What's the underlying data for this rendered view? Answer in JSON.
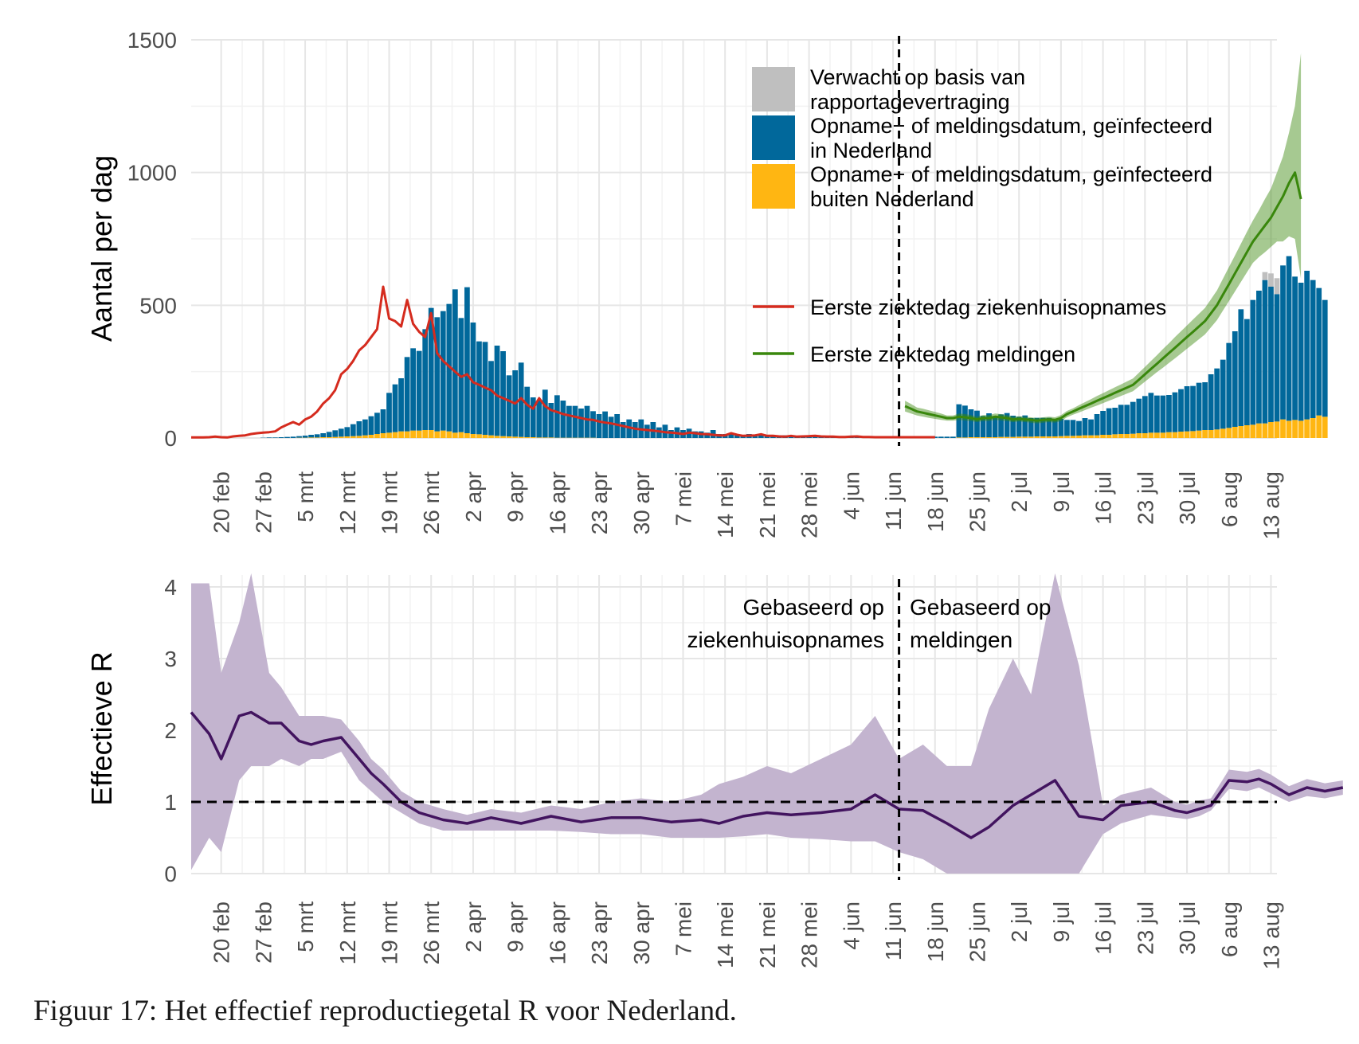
{
  "caption": "Figuur 17: Het effectief reproductiegetal R voor Nederland.",
  "chart_data": [
    {
      "type": "bar",
      "ylabel": "Aantal per dag",
      "ylim": [
        0,
        1500
      ],
      "yticks": [
        "0",
        "500",
        "1000",
        "1500"
      ],
      "x_start": "2020-02-15",
      "x_end": "2020-08-14",
      "xtick_labels": [
        "20 feb",
        "27 feb",
        "5 mrt",
        "12 mrt",
        "19 mrt",
        "26 mrt",
        "2 apr",
        "9 apr",
        "16 apr",
        "23 apr",
        "30 apr",
        "7 mei",
        "14 mei",
        "21 mei",
        "28 mei",
        "4 jun",
        "11 jun",
        "18 jun",
        "25 jun",
        "2 jul",
        "9 jul",
        "16 jul",
        "23 jul",
        "30 jul",
        "6 aug",
        "13 aug"
      ],
      "vline_date": "2020-06-12",
      "grid": true,
      "legend": [
        {
          "label": "Verwacht op basis van rapportagevertraging",
          "line1": "Verwacht op basis van",
          "line2": "rapportagevertraging",
          "color": "#bfbfbf"
        },
        {
          "label": "Opname− of meldingsdatum, geïnfecteerd in Nederland",
          "line1": "Opname− of meldingsdatum, geïnfecteerd",
          "line2": "in Nederland",
          "color": "#01689b"
        },
        {
          "label": "Opname− of meldingsdatum, geïnfecteerd buiten Nederland",
          "line1": "Opname− of meldingsdatum, geïnfecteerd",
          "line2": "buiten Nederland",
          "color": "#ffb612"
        },
        {
          "label": "Eerste ziektedag ziekenhuisopnames",
          "color": "#d52b1e"
        },
        {
          "label": "Eerste ziektedag meldingen",
          "color": "#39870c"
        }
      ],
      "bar_series": [
        {
          "name": "Opname− of meldingsdatum, geïnfecteerd in Nederland",
          "color": "#01689b",
          "start": "2020-02-27",
          "values": [
            1,
            2,
            2,
            3,
            4,
            5,
            6,
            8,
            10,
            12,
            15,
            20,
            25,
            30,
            35,
            45,
            55,
            60,
            70,
            80,
            90,
            150,
            180,
            200,
            280,
            310,
            300,
            380,
            460,
            430,
            450,
            480,
            540,
            430,
            550,
            420,
            350,
            350,
            280,
            340,
            320,
            230,
            250,
            280,
            190,
            150,
            140,
            180,
            130,
            160,
            140,
            120,
            120,
            110,
            120,
            100,
            90,
            100,
            80,
            90,
            60,
            70,
            60,
            70,
            50,
            60,
            40,
            50,
            30,
            40,
            30,
            35,
            25,
            25,
            20,
            30,
            15,
            15,
            15,
            15,
            10,
            15,
            12,
            12,
            10,
            10,
            10,
            10,
            10,
            8,
            8,
            8,
            10,
            8,
            7,
            7,
            6,
            6,
            5,
            6,
            5,
            5,
            5,
            5,
            5,
            5,
            5,
            5,
            5,
            5,
            5,
            5,
            5,
            5,
            5,
            5,
            125,
            120,
            105,
            100,
            80,
            90,
            80,
            85,
            90,
            80,
            75,
            80,
            70,
            70,
            70,
            70,
            65,
            65,
            60,
            60,
            55,
            65,
            60,
            80,
            90,
            100,
            100,
            110,
            110,
            120,
            130,
            140,
            150,
            140,
            140,
            140,
            150,
            160,
            170,
            170,
            180,
            180,
            210,
            230,
            260,
            320,
            360,
            440,
            400,
            470,
            500,
            540,
            510,
            480,
            580,
            620,
            540,
            520,
            560,
            520,
            480,
            440
          ]
        },
        {
          "name": "Opname− of meldingsdatum, geïnfecteerd buiten Nederland",
          "color": "#ffb612",
          "start": "2020-02-27",
          "values": [
            0,
            0,
            0,
            0,
            0,
            0,
            1,
            1,
            2,
            2,
            3,
            3,
            4,
            5,
            6,
            7,
            8,
            10,
            12,
            15,
            18,
            20,
            22,
            25,
            25,
            28,
            28,
            30,
            30,
            25,
            28,
            25,
            20,
            22,
            18,
            15,
            14,
            12,
            10,
            8,
            7,
            6,
            5,
            4,
            3,
            3,
            2,
            2,
            2,
            1,
            1,
            1,
            1,
            1,
            1,
            1,
            0,
            0,
            0,
            0,
            0,
            0,
            0,
            0,
            0,
            0,
            0,
            0,
            0,
            0,
            0,
            0,
            0,
            0,
            0,
            0,
            0,
            0,
            0,
            0,
            0,
            0,
            0,
            0,
            0,
            0,
            0,
            0,
            0,
            0,
            0,
            0,
            0,
            0,
            0,
            0,
            0,
            0,
            0,
            0,
            0,
            0,
            0,
            0,
            0,
            0,
            0,
            0,
            0,
            0,
            0,
            0,
            0,
            0,
            0,
            0,
            2,
            2,
            3,
            3,
            3,
            3,
            3,
            4,
            4,
            4,
            5,
            5,
            5,
            6,
            6,
            6,
            6,
            7,
            8,
            8,
            9,
            10,
            10,
            10,
            12,
            12,
            14,
            15,
            15,
            16,
            18,
            18,
            20,
            20,
            20,
            22,
            22,
            24,
            25,
            26,
            28,
            30,
            30,
            32,
            35,
            38,
            42,
            45,
            48,
            50,
            55,
            55,
            60,
            62,
            70,
            65,
            68,
            65,
            70,
            75,
            85,
            80
          ]
        },
        {
          "name": "Verwacht op basis van rapportagevertraging",
          "color": "#bfbfbf",
          "start": "2020-08-12",
          "values": [
            30,
            50,
            60
          ]
        }
      ],
      "line_series": [
        {
          "name": "Eerste ziektedag ziekenhuisopnames",
          "color": "#d52b1e",
          "start": "2020-02-15",
          "values": [
            2,
            2,
            2,
            3,
            5,
            3,
            2,
            6,
            8,
            10,
            15,
            18,
            20,
            22,
            25,
            40,
            50,
            60,
            50,
            70,
            80,
            100,
            130,
            150,
            180,
            240,
            260,
            290,
            330,
            350,
            380,
            410,
            570,
            450,
            440,
            420,
            520,
            430,
            400,
            380,
            470,
            320,
            290,
            270,
            250,
            230,
            240,
            210,
            200,
            190,
            180,
            160,
            150,
            140,
            130,
            150,
            125,
            110,
            150,
            120,
            105,
            98,
            90,
            85,
            80,
            75,
            70,
            68,
            62,
            58,
            55,
            50,
            45,
            40,
            35,
            32,
            30,
            28,
            25,
            22,
            20,
            18,
            15,
            20,
            18,
            15,
            14,
            12,
            10,
            10,
            18,
            12,
            8,
            9,
            10,
            14,
            8,
            8,
            6,
            5,
            8,
            5,
            6,
            7,
            8,
            6,
            5,
            5,
            4,
            4,
            5,
            6,
            4,
            4,
            3,
            3,
            3,
            3,
            3,
            3,
            3,
            3,
            3,
            3,
            3
          ]
        },
        {
          "name": "Eerste ziektedag meldingen",
          "color": "#39870c",
          "start": "2020-06-13",
          "values": [
            120,
            110,
            100,
            95,
            90,
            85,
            80,
            75,
            75,
            80,
            78,
            75,
            70,
            75,
            75,
            80,
            78,
            75,
            70,
            72,
            70,
            68,
            65,
            68,
            70,
            68,
            75,
            90,
            100,
            110,
            120,
            130,
            140,
            150,
            160,
            170,
            180,
            190,
            200,
            220,
            240,
            260,
            280,
            300,
            320,
            340,
            360,
            380,
            400,
            420,
            440,
            470,
            500,
            540,
            580,
            620,
            660,
            700,
            740,
            770,
            800,
            830,
            870,
            910,
            960,
            1000,
            900
          ],
          "band_low": [
            100,
            92,
            85,
            80,
            76,
            72,
            68,
            65,
            65,
            68,
            66,
            64,
            60,
            64,
            64,
            68,
            66,
            64,
            60,
            62,
            60,
            58,
            55,
            58,
            60,
            58,
            64,
            78,
            88,
            96,
            105,
            114,
            122,
            131,
            140,
            149,
            158,
            167,
            176,
            194,
            212,
            230,
            248,
            265,
            283,
            300,
            318,
            336,
            354,
            372,
            390,
            417,
            444,
            480,
            516,
            552,
            588,
            624,
            660,
            682,
            700,
            720,
            740,
            740,
            760,
            750,
            600
          ],
          "band_high": [
            140,
            128,
            115,
            110,
            104,
            98,
            92,
            85,
            85,
            92,
            90,
            86,
            80,
            86,
            86,
            92,
            90,
            86,
            80,
            82,
            80,
            78,
            75,
            78,
            80,
            78,
            86,
            102,
            112,
            124,
            135,
            146,
            158,
            169,
            180,
            191,
            202,
            213,
            224,
            246,
            268,
            290,
            312,
            335,
            357,
            380,
            402,
            424,
            446,
            468,
            490,
            523,
            556,
            600,
            644,
            688,
            732,
            776,
            820,
            858,
            900,
            940,
            1000,
            1060,
            1150,
            1250,
            1450
          ]
        }
      ]
    },
    {
      "type": "line",
      "ylabel": "Effectieve R",
      "ylim": [
        0,
        4
      ],
      "yticks": [
        "0",
        "1",
        "2",
        "3",
        "4"
      ],
      "x_start": "2020-02-15",
      "x_end": "2020-08-14",
      "xtick_labels": [
        "20 feb",
        "27 feb",
        "5 mrt",
        "12 mrt",
        "19 mrt",
        "26 mrt",
        "2 apr",
        "9 apr",
        "16 apr",
        "23 apr",
        "30 apr",
        "7 mei",
        "14 mei",
        "21 mei",
        "28 mei",
        "4 jun",
        "11 jun",
        "18 jun",
        "25 jun",
        "2 jul",
        "9 jul",
        "16 jul",
        "23 jul",
        "30 jul",
        "6 aug",
        "13 aug"
      ],
      "hline_value": 1,
      "vline_date": "2020-06-12",
      "grid": true,
      "annotations": [
        {
          "line1": "Gebaseerd op",
          "line2": "ziekenhuisopnames",
          "side": "left"
        },
        {
          "line1": "Gebaseerd op",
          "line2": "meldingen",
          "side": "right"
        }
      ],
      "series": [
        {
          "name": "R ziekenhuisopnames",
          "color": "#42145f",
          "band_color": "#c3b4cf",
          "start": "2020-02-15",
          "x_days": [
            0,
            3,
            5,
            8,
            10,
            13,
            15,
            18,
            20,
            22,
            25,
            28,
            30,
            32,
            35,
            38,
            42,
            46,
            50,
            55,
            60,
            65,
            70,
            75,
            80,
            85,
            88,
            92,
            96,
            100,
            105,
            110,
            114,
            118,
            122,
            126,
            130,
            133,
            137,
            140,
            144,
            148,
            152,
            155,
            160,
            164,
            166,
            168,
            170,
            173,
            176,
            178,
            180,
            183,
            186,
            189,
            192
          ],
          "values": [
            2.25,
            1.95,
            1.6,
            2.2,
            2.25,
            2.1,
            2.1,
            1.85,
            1.8,
            1.85,
            1.9,
            1.6,
            1.4,
            1.25,
            1.0,
            0.85,
            0.75,
            0.7,
            0.78,
            0.7,
            0.8,
            0.72,
            0.78,
            0.78,
            0.72,
            0.75,
            0.7,
            0.8,
            0.85,
            0.82,
            0.85,
            0.9,
            1.1,
            0.9,
            0.88,
            0.7,
            0.5,
            0.65,
            0.95,
            1.1,
            1.3,
            0.8,
            0.75,
            0.95,
            1.0,
            0.88,
            0.85,
            0.9,
            0.95,
            1.3,
            1.28,
            1.32,
            1.25,
            1.1,
            1.2,
            1.15,
            1.2
          ],
          "band_low": [
            0.05,
            0.5,
            0.3,
            1.3,
            1.5,
            1.5,
            1.6,
            1.5,
            1.6,
            1.6,
            1.7,
            1.3,
            1.15,
            1.0,
            0.85,
            0.7,
            0.6,
            0.6,
            0.6,
            0.6,
            0.6,
            0.58,
            0.55,
            0.55,
            0.5,
            0.5,
            0.5,
            0.52,
            0.55,
            0.5,
            0.48,
            0.45,
            0.45,
            0.3,
            0.2,
            0.0,
            0.0,
            0.0,
            0.0,
            0.0,
            0.0,
            0.0,
            0.55,
            0.7,
            0.82,
            0.78,
            0.76,
            0.8,
            0.88,
            1.18,
            1.15,
            1.2,
            1.12,
            1.0,
            1.08,
            1.05,
            1.1
          ],
          "band_high": [
            4.05,
            4.05,
            2.8,
            3.5,
            4.5,
            2.8,
            2.6,
            2.2,
            2.2,
            2.2,
            2.15,
            1.85,
            1.6,
            1.45,
            1.15,
            1.0,
            0.9,
            0.82,
            0.9,
            0.85,
            0.95,
            0.9,
            1.0,
            1.05,
            1.0,
            1.1,
            1.25,
            1.35,
            1.5,
            1.4,
            1.6,
            1.8,
            2.2,
            1.6,
            1.8,
            1.5,
            1.5,
            2.3,
            3.0,
            2.5,
            4.2,
            2.9,
            0.95,
            1.1,
            1.2,
            1.0,
            0.96,
            1.02,
            1.05,
            1.45,
            1.42,
            1.46,
            1.38,
            1.22,
            1.32,
            1.26,
            1.3
          ]
        }
      ]
    }
  ]
}
